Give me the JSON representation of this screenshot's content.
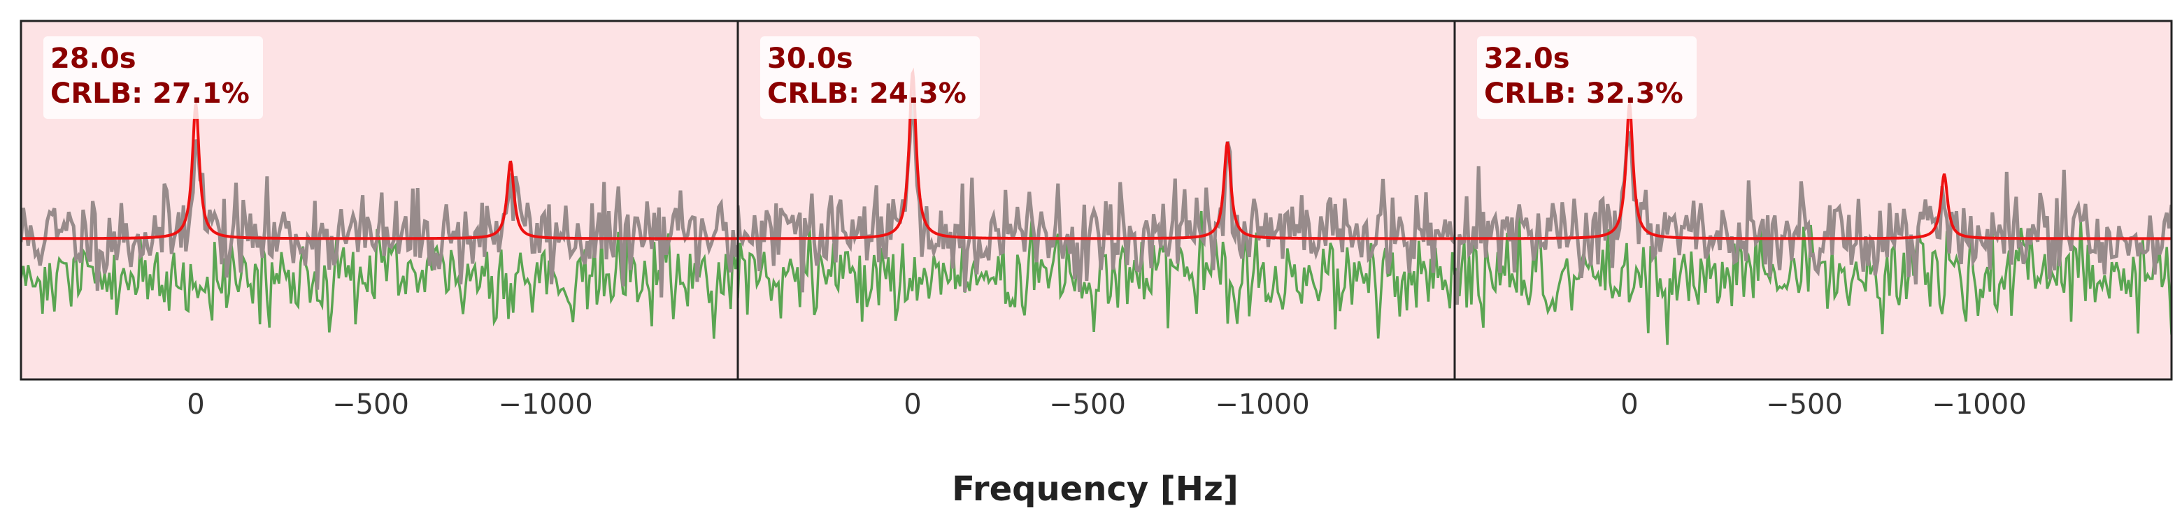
{
  "chart_data": {
    "type": "line",
    "xlabel": "Frequency [Hz]",
    "xlim": [
      500,
      -1550
    ],
    "x_ticks": [
      0,
      -500,
      -1000
    ],
    "x_tick_labels": [
      "0",
      "−500",
      "−1000"
    ],
    "ylim": [
      -1.1,
      1.7
    ],
    "grid": false,
    "background_color": "#fde3e5",
    "colors": {
      "spectrum": "#978b8b",
      "fit": "#ee1111",
      "residual": "#5aa552",
      "annotation": "#8b0000"
    },
    "panels": [
      {
        "time_label": "28.0s",
        "crlb_label": "CRLB: 27.1%",
        "peaks": [
          {
            "x": 0,
            "y": 1.05
          },
          {
            "x": -900,
            "y": 0.6
          }
        ],
        "baseline": 0.0,
        "noise_seed": 11
      },
      {
        "time_label": "30.0s",
        "crlb_label": "CRLB: 24.3%",
        "peaks": [
          {
            "x": 0,
            "y": 1.3
          },
          {
            "x": -900,
            "y": 0.75
          }
        ],
        "baseline": 0.0,
        "noise_seed": 29
      },
      {
        "time_label": "32.0s",
        "crlb_label": "CRLB: 32.3%",
        "peaks": [
          {
            "x": 0,
            "y": 1.05
          },
          {
            "x": -900,
            "y": 0.5
          }
        ],
        "baseline": 0.0,
        "noise_seed": 47
      }
    ]
  }
}
